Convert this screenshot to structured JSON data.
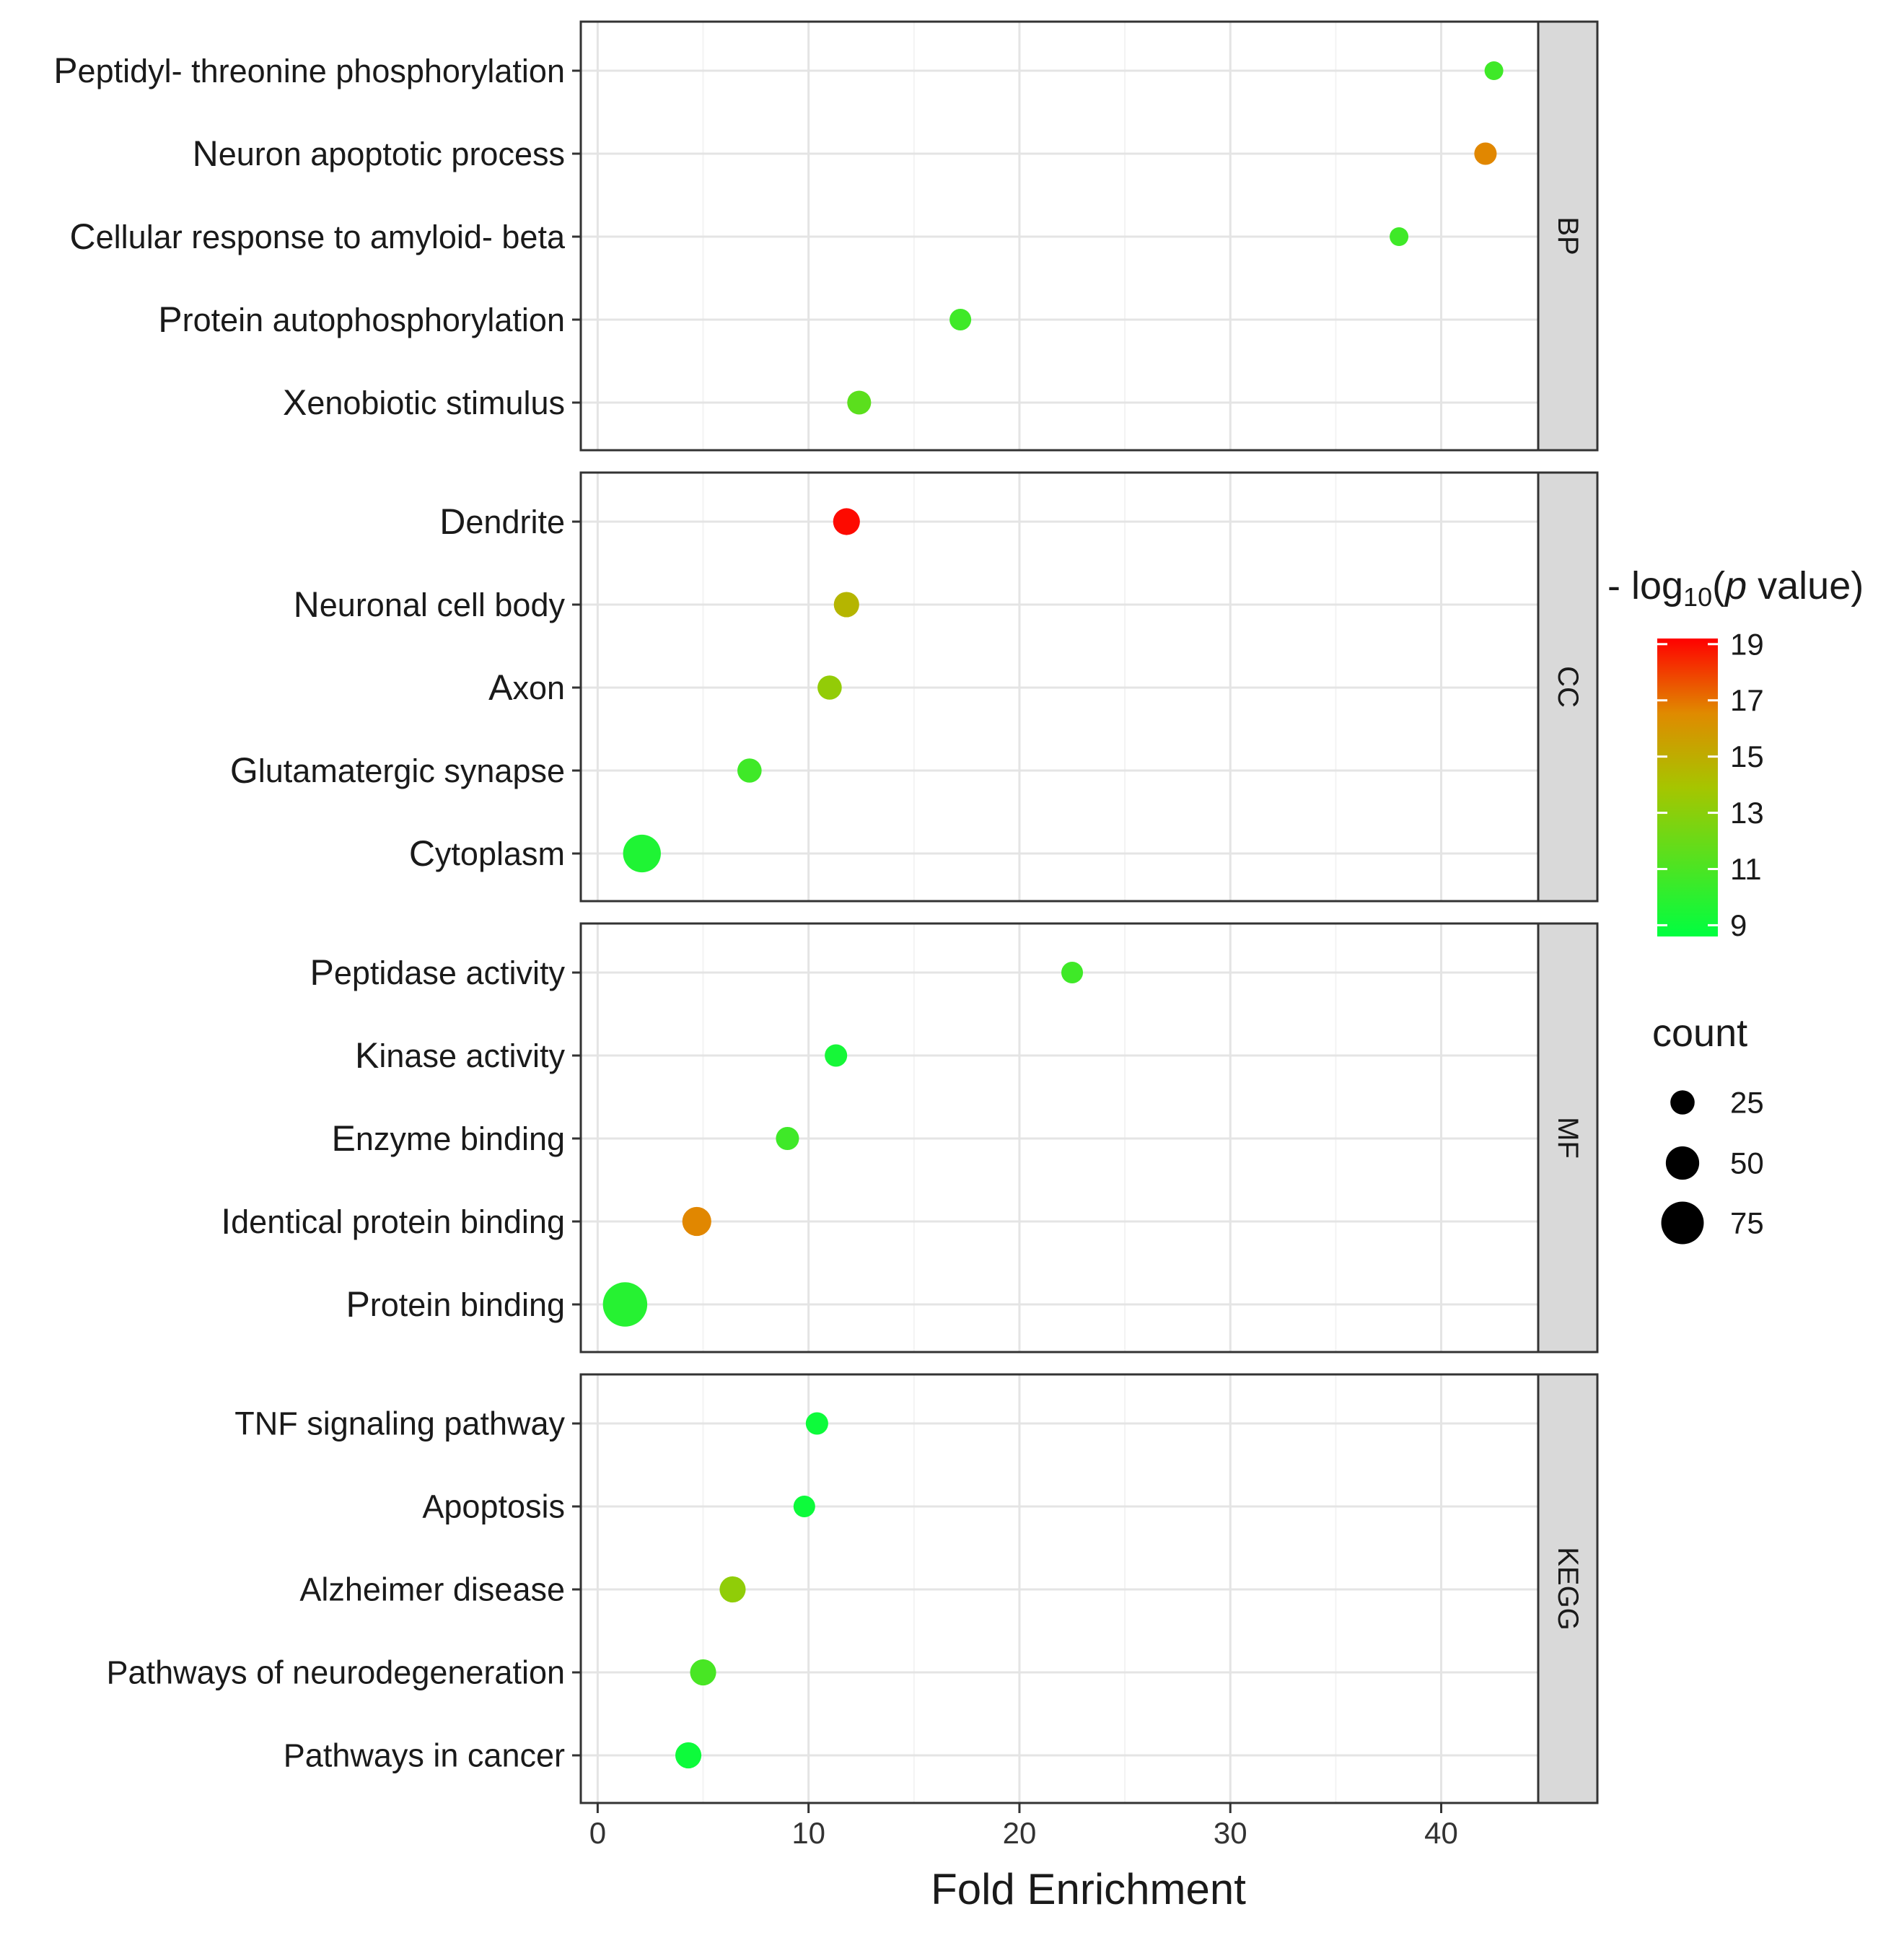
{
  "chart_data": {
    "type": "scatter",
    "subtype": "faceted-bubble",
    "xlabel": "Fold Enrichment",
    "xlim": [
      -0.8,
      44.6
    ],
    "xticks": [
      0,
      10,
      20,
      30,
      40
    ],
    "color_range": [
      8.6,
      19.2
    ],
    "count_range": [
      10,
      85
    ],
    "panels": [
      {
        "name": "BP",
        "terms": [
          {
            "label": "Peptidyl- threonine phosphorylation",
            "x": 42.5,
            "p": 10.6,
            "count": 10
          },
          {
            "label": "Neuron apoptotic process",
            "x": 42.1,
            "p": 16.6,
            "count": 20
          },
          {
            "label": "Cellular response to amyloid- beta",
            "x": 38.0,
            "p": 10.6,
            "count": 10
          },
          {
            "label": "Protein autophosphorylation",
            "x": 17.2,
            "p": 10.6,
            "count": 18
          },
          {
            "label": "Xenobiotic stimulus",
            "x": 12.4,
            "p": 11.5,
            "count": 24
          }
        ]
      },
      {
        "name": "CC",
        "terms": [
          {
            "label": "Dendrite",
            "x": 11.8,
            "p": 19.0,
            "count": 32
          },
          {
            "label": "Neuronal cell body",
            "x": 11.8,
            "p": 14.6,
            "count": 28
          },
          {
            "label": "Axon",
            "x": 11.0,
            "p": 13.3,
            "count": 25
          },
          {
            "label": "Glutamatergic synapse",
            "x": 7.2,
            "p": 10.6,
            "count": 25
          },
          {
            "label": "Cytoplasm",
            "x": 2.1,
            "p": 9.6,
            "count": 62
          }
        ]
      },
      {
        "name": "MF",
        "terms": [
          {
            "label": "Peptidase activity",
            "x": 22.5,
            "p": 10.6,
            "count": 18
          },
          {
            "label": "Kinase activity",
            "x": 11.3,
            "p": 9.3,
            "count": 20
          },
          {
            "label": "Enzyme binding",
            "x": 9.0,
            "p": 10.6,
            "count": 22
          },
          {
            "label": "Identical protein binding",
            "x": 4.7,
            "p": 16.6,
            "count": 38
          },
          {
            "label": "Protein binding",
            "x": 1.3,
            "p": 9.8,
            "count": 80
          }
        ]
      },
      {
        "name": "KEGG",
        "terms": [
          {
            "label": "TNF signaling pathway",
            "x": 10.4,
            "p": 9.0,
            "count": 20
          },
          {
            "label": "Apoptosis",
            "x": 9.8,
            "p": 9.0,
            "count": 18
          },
          {
            "label": "Alzheimer disease",
            "x": 6.4,
            "p": 13.2,
            "count": 30
          },
          {
            "label": "Pathways of neurodegeneration",
            "x": 5.0,
            "p": 10.9,
            "count": 30
          },
          {
            "label": "Pathways in cancer",
            "x": 4.3,
            "p": 9.0,
            "count": 30
          }
        ]
      }
    ],
    "legend": {
      "color_title_prefix": "- log",
      "color_title_sub": "10",
      "color_title_open": "(",
      "color_title_p": "p",
      "color_title_rest": " value)",
      "color_ticks": [
        19,
        17,
        15,
        13,
        11,
        9
      ],
      "color_low": "#00ff40",
      "color_high": "#ff0000",
      "size_title": "count",
      "size_values": [
        25,
        50,
        75
      ]
    }
  }
}
